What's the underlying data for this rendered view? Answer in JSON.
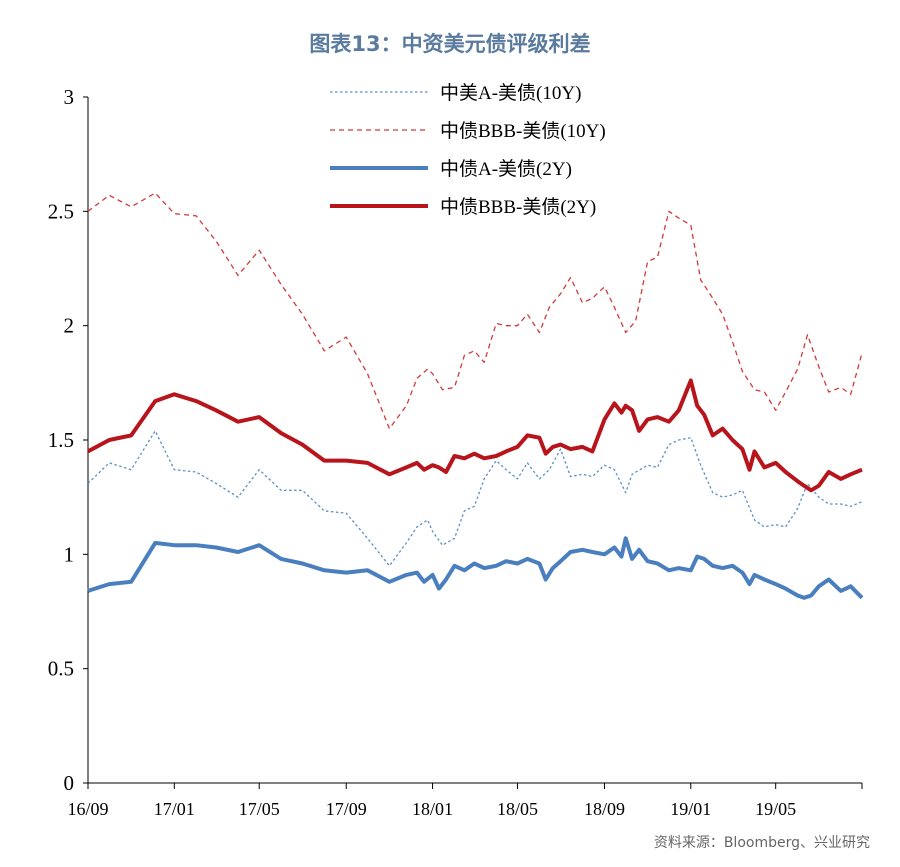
{
  "title": "图表13：中资美元债评级利差",
  "source": "资料来源：Bloomberg、兴业研究",
  "chart_data": {
    "type": "line",
    "y_ticks": [
      "0",
      "0.5",
      "1",
      "1.5",
      "2",
      "2.5",
      "3"
    ],
    "ylim": [
      0,
      3
    ],
    "x_ticks": [
      "16/09",
      "17/01",
      "17/05",
      "17/09",
      "18/01",
      "18/05",
      "18/09",
      "19/01",
      "19/05"
    ],
    "xlim": [
      "2016-09-01",
      "2019-08-31"
    ],
    "grid": false,
    "legend_position": "top",
    "series": [
      {
        "name": "中美A-美债(10Y)",
        "color": "#5b8fc9",
        "style": "dotted",
        "points": [
          [
            "2016-09-01",
            1.31
          ],
          [
            "2016-10-01",
            1.4
          ],
          [
            "2016-11-01",
            1.37
          ],
          [
            "2016-12-05",
            1.54
          ],
          [
            "2017-01-01",
            1.37
          ],
          [
            "2017-02-01",
            1.36
          ],
          [
            "2017-03-01",
            1.31
          ],
          [
            "2017-04-01",
            1.25
          ],
          [
            "2017-05-01",
            1.37
          ],
          [
            "2017-06-01",
            1.28
          ],
          [
            "2017-07-01",
            1.28
          ],
          [
            "2017-08-01",
            1.19
          ],
          [
            "2017-09-01",
            1.18
          ],
          [
            "2017-10-01",
            1.07
          ],
          [
            "2017-11-01",
            0.95
          ],
          [
            "2017-11-25",
            1.05
          ],
          [
            "2017-12-10",
            1.12
          ],
          [
            "2017-12-25",
            1.15
          ],
          [
            "2018-01-01",
            1.1
          ],
          [
            "2018-01-15",
            1.04
          ],
          [
            "2018-02-01",
            1.07
          ],
          [
            "2018-02-15",
            1.19
          ],
          [
            "2018-03-01",
            1.21
          ],
          [
            "2018-03-15",
            1.33
          ],
          [
            "2018-04-01",
            1.41
          ],
          [
            "2018-04-15",
            1.37
          ],
          [
            "2018-05-01",
            1.33
          ],
          [
            "2018-05-15",
            1.4
          ],
          [
            "2018-06-01",
            1.33
          ],
          [
            "2018-06-15",
            1.37
          ],
          [
            "2018-07-01",
            1.46
          ],
          [
            "2018-07-15",
            1.34
          ],
          [
            "2018-08-01",
            1.35
          ],
          [
            "2018-08-15",
            1.34
          ],
          [
            "2018-09-01",
            1.39
          ],
          [
            "2018-09-15",
            1.37
          ],
          [
            "2018-10-01",
            1.27
          ],
          [
            "2018-10-10",
            1.35
          ],
          [
            "2018-11-01",
            1.39
          ],
          [
            "2018-11-15",
            1.38
          ],
          [
            "2018-12-01",
            1.48
          ],
          [
            "2018-12-15",
            1.5
          ],
          [
            "2019-01-01",
            1.51
          ],
          [
            "2019-01-15",
            1.39
          ],
          [
            "2019-02-01",
            1.27
          ],
          [
            "2019-02-15",
            1.25
          ],
          [
            "2019-03-01",
            1.26
          ],
          [
            "2019-03-15",
            1.28
          ],
          [
            "2019-04-01",
            1.15
          ],
          [
            "2019-04-15",
            1.12
          ],
          [
            "2019-05-01",
            1.13
          ],
          [
            "2019-05-15",
            1.12
          ],
          [
            "2019-06-01",
            1.2
          ],
          [
            "2019-06-15",
            1.31
          ],
          [
            "2019-07-01",
            1.25
          ],
          [
            "2019-07-15",
            1.22
          ],
          [
            "2019-08-01",
            1.22
          ],
          [
            "2019-08-15",
            1.21
          ],
          [
            "2019-08-31",
            1.23
          ]
        ]
      },
      {
        "name": "中债BBB-美债(10Y)",
        "color": "#d23a3a",
        "style": "dashed",
        "points": [
          [
            "2016-09-01",
            2.5
          ],
          [
            "2016-10-01",
            2.57
          ],
          [
            "2016-11-01",
            2.52
          ],
          [
            "2016-12-05",
            2.58
          ],
          [
            "2017-01-01",
            2.49
          ],
          [
            "2017-02-01",
            2.48
          ],
          [
            "2017-03-01",
            2.37
          ],
          [
            "2017-04-01",
            2.22
          ],
          [
            "2017-05-01",
            2.33
          ],
          [
            "2017-06-01",
            2.18
          ],
          [
            "2017-07-01",
            2.05
          ],
          [
            "2017-08-01",
            1.89
          ],
          [
            "2017-09-01",
            1.95
          ],
          [
            "2017-10-01",
            1.79
          ],
          [
            "2017-11-01",
            1.55
          ],
          [
            "2017-11-25",
            1.65
          ],
          [
            "2017-12-10",
            1.77
          ],
          [
            "2017-12-25",
            1.81
          ],
          [
            "2018-01-01",
            1.79
          ],
          [
            "2018-01-15",
            1.72
          ],
          [
            "2018-02-01",
            1.73
          ],
          [
            "2018-02-15",
            1.87
          ],
          [
            "2018-03-01",
            1.89
          ],
          [
            "2018-03-15",
            1.84
          ],
          [
            "2018-04-01",
            2.01
          ],
          [
            "2018-04-15",
            2.0
          ],
          [
            "2018-05-01",
            2.0
          ],
          [
            "2018-05-15",
            2.05
          ],
          [
            "2018-06-01",
            1.97
          ],
          [
            "2018-06-15",
            2.08
          ],
          [
            "2018-07-01",
            2.14
          ],
          [
            "2018-07-15",
            2.21
          ],
          [
            "2018-08-01",
            2.1
          ],
          [
            "2018-08-15",
            2.12
          ],
          [
            "2018-09-01",
            2.17
          ],
          [
            "2018-09-15",
            2.08
          ],
          [
            "2018-10-01",
            1.97
          ],
          [
            "2018-10-15",
            2.02
          ],
          [
            "2018-11-01",
            2.28
          ],
          [
            "2018-11-15",
            2.3
          ],
          [
            "2018-12-01",
            2.5
          ],
          [
            "2018-12-15",
            2.47
          ],
          [
            "2019-01-01",
            2.44
          ],
          [
            "2019-01-15",
            2.2
          ],
          [
            "2019-02-01",
            2.12
          ],
          [
            "2019-02-15",
            2.05
          ],
          [
            "2019-03-01",
            1.93
          ],
          [
            "2019-03-15",
            1.8
          ],
          [
            "2019-04-01",
            1.72
          ],
          [
            "2019-04-15",
            1.71
          ],
          [
            "2019-05-01",
            1.63
          ],
          [
            "2019-05-15",
            1.71
          ],
          [
            "2019-06-01",
            1.81
          ],
          [
            "2019-06-15",
            1.96
          ],
          [
            "2019-07-01",
            1.82
          ],
          [
            "2019-07-15",
            1.71
          ],
          [
            "2019-08-01",
            1.73
          ],
          [
            "2019-08-15",
            1.7
          ],
          [
            "2019-08-31",
            1.88
          ]
        ]
      },
      {
        "name": "中债A-美债(2Y)",
        "color": "#4a7fbf",
        "style": "solid",
        "points": [
          [
            "2016-09-01",
            0.84
          ],
          [
            "2016-10-01",
            0.87
          ],
          [
            "2016-11-01",
            0.88
          ],
          [
            "2016-12-05",
            1.05
          ],
          [
            "2017-01-01",
            1.04
          ],
          [
            "2017-02-01",
            1.04
          ],
          [
            "2017-03-01",
            1.03
          ],
          [
            "2017-04-01",
            1.01
          ],
          [
            "2017-05-01",
            1.04
          ],
          [
            "2017-06-01",
            0.98
          ],
          [
            "2017-07-01",
            0.96
          ],
          [
            "2017-08-01",
            0.93
          ],
          [
            "2017-09-01",
            0.92
          ],
          [
            "2017-10-01",
            0.93
          ],
          [
            "2017-11-01",
            0.88
          ],
          [
            "2017-11-25",
            0.91
          ],
          [
            "2017-12-10",
            0.92
          ],
          [
            "2017-12-20",
            0.88
          ],
          [
            "2018-01-01",
            0.91
          ],
          [
            "2018-01-10",
            0.85
          ],
          [
            "2018-01-20",
            0.89
          ],
          [
            "2018-02-01",
            0.95
          ],
          [
            "2018-02-15",
            0.93
          ],
          [
            "2018-03-01",
            0.96
          ],
          [
            "2018-03-15",
            0.94
          ],
          [
            "2018-04-01",
            0.95
          ],
          [
            "2018-04-15",
            0.97
          ],
          [
            "2018-05-01",
            0.96
          ],
          [
            "2018-05-15",
            0.98
          ],
          [
            "2018-06-01",
            0.96
          ],
          [
            "2018-06-10",
            0.89
          ],
          [
            "2018-06-20",
            0.94
          ],
          [
            "2018-07-01",
            0.97
          ],
          [
            "2018-07-15",
            1.01
          ],
          [
            "2018-08-01",
            1.02
          ],
          [
            "2018-08-15",
            1.01
          ],
          [
            "2018-09-01",
            1.0
          ],
          [
            "2018-09-15",
            1.03
          ],
          [
            "2018-09-25",
            0.99
          ],
          [
            "2018-10-01",
            1.07
          ],
          [
            "2018-10-10",
            0.98
          ],
          [
            "2018-10-20",
            1.02
          ],
          [
            "2018-11-01",
            0.97
          ],
          [
            "2018-11-15",
            0.96
          ],
          [
            "2018-12-01",
            0.93
          ],
          [
            "2018-12-15",
            0.94
          ],
          [
            "2019-01-01",
            0.93
          ],
          [
            "2019-01-10",
            0.99
          ],
          [
            "2019-01-20",
            0.98
          ],
          [
            "2019-02-01",
            0.95
          ],
          [
            "2019-02-15",
            0.94
          ],
          [
            "2019-03-01",
            0.95
          ],
          [
            "2019-03-15",
            0.92
          ],
          [
            "2019-03-25",
            0.87
          ],
          [
            "2019-04-01",
            0.91
          ],
          [
            "2019-04-15",
            0.89
          ],
          [
            "2019-05-01",
            0.87
          ],
          [
            "2019-05-15",
            0.85
          ],
          [
            "2019-06-01",
            0.82
          ],
          [
            "2019-06-10",
            0.81
          ],
          [
            "2019-06-20",
            0.82
          ],
          [
            "2019-07-01",
            0.86
          ],
          [
            "2019-07-15",
            0.89
          ],
          [
            "2019-08-01",
            0.84
          ],
          [
            "2019-08-15",
            0.86
          ],
          [
            "2019-08-31",
            0.81
          ]
        ]
      },
      {
        "name": "中债BBB-美债(2Y)",
        "color": "#b8141b",
        "style": "solid",
        "points": [
          [
            "2016-09-01",
            1.45
          ],
          [
            "2016-10-01",
            1.5
          ],
          [
            "2016-11-01",
            1.52
          ],
          [
            "2016-12-05",
            1.67
          ],
          [
            "2017-01-01",
            1.7
          ],
          [
            "2017-02-01",
            1.67
          ],
          [
            "2017-03-01",
            1.63
          ],
          [
            "2017-04-01",
            1.58
          ],
          [
            "2017-05-01",
            1.6
          ],
          [
            "2017-06-01",
            1.53
          ],
          [
            "2017-07-01",
            1.48
          ],
          [
            "2017-08-01",
            1.41
          ],
          [
            "2017-09-01",
            1.41
          ],
          [
            "2017-10-01",
            1.4
          ],
          [
            "2017-11-01",
            1.35
          ],
          [
            "2017-11-25",
            1.38
          ],
          [
            "2017-12-10",
            1.4
          ],
          [
            "2017-12-20",
            1.37
          ],
          [
            "2018-01-01",
            1.39
          ],
          [
            "2018-01-10",
            1.38
          ],
          [
            "2018-01-20",
            1.36
          ],
          [
            "2018-02-01",
            1.43
          ],
          [
            "2018-02-15",
            1.42
          ],
          [
            "2018-03-01",
            1.44
          ],
          [
            "2018-03-15",
            1.42
          ],
          [
            "2018-04-01",
            1.43
          ],
          [
            "2018-04-15",
            1.45
          ],
          [
            "2018-05-01",
            1.47
          ],
          [
            "2018-05-15",
            1.52
          ],
          [
            "2018-06-01",
            1.51
          ],
          [
            "2018-06-10",
            1.44
          ],
          [
            "2018-06-20",
            1.47
          ],
          [
            "2018-07-01",
            1.48
          ],
          [
            "2018-07-15",
            1.46
          ],
          [
            "2018-08-01",
            1.47
          ],
          [
            "2018-08-15",
            1.45
          ],
          [
            "2018-09-01",
            1.59
          ],
          [
            "2018-09-15",
            1.66
          ],
          [
            "2018-09-25",
            1.62
          ],
          [
            "2018-10-01",
            1.65
          ],
          [
            "2018-10-10",
            1.63
          ],
          [
            "2018-10-20",
            1.54
          ],
          [
            "2018-11-01",
            1.59
          ],
          [
            "2018-11-15",
            1.6
          ],
          [
            "2018-12-01",
            1.58
          ],
          [
            "2018-12-15",
            1.63
          ],
          [
            "2019-01-01",
            1.76
          ],
          [
            "2019-01-10",
            1.65
          ],
          [
            "2019-01-20",
            1.61
          ],
          [
            "2019-02-01",
            1.52
          ],
          [
            "2019-02-15",
            1.55
          ],
          [
            "2019-03-01",
            1.5
          ],
          [
            "2019-03-15",
            1.46
          ],
          [
            "2019-03-25",
            1.37
          ],
          [
            "2019-04-01",
            1.45
          ],
          [
            "2019-04-15",
            1.38
          ],
          [
            "2019-05-01",
            1.4
          ],
          [
            "2019-05-15",
            1.36
          ],
          [
            "2019-06-01",
            1.32
          ],
          [
            "2019-06-10",
            1.3
          ],
          [
            "2019-06-20",
            1.28
          ],
          [
            "2019-07-01",
            1.3
          ],
          [
            "2019-07-15",
            1.36
          ],
          [
            "2019-08-01",
            1.33
          ],
          [
            "2019-08-15",
            1.35
          ],
          [
            "2019-08-31",
            1.37
          ]
        ]
      }
    ]
  }
}
